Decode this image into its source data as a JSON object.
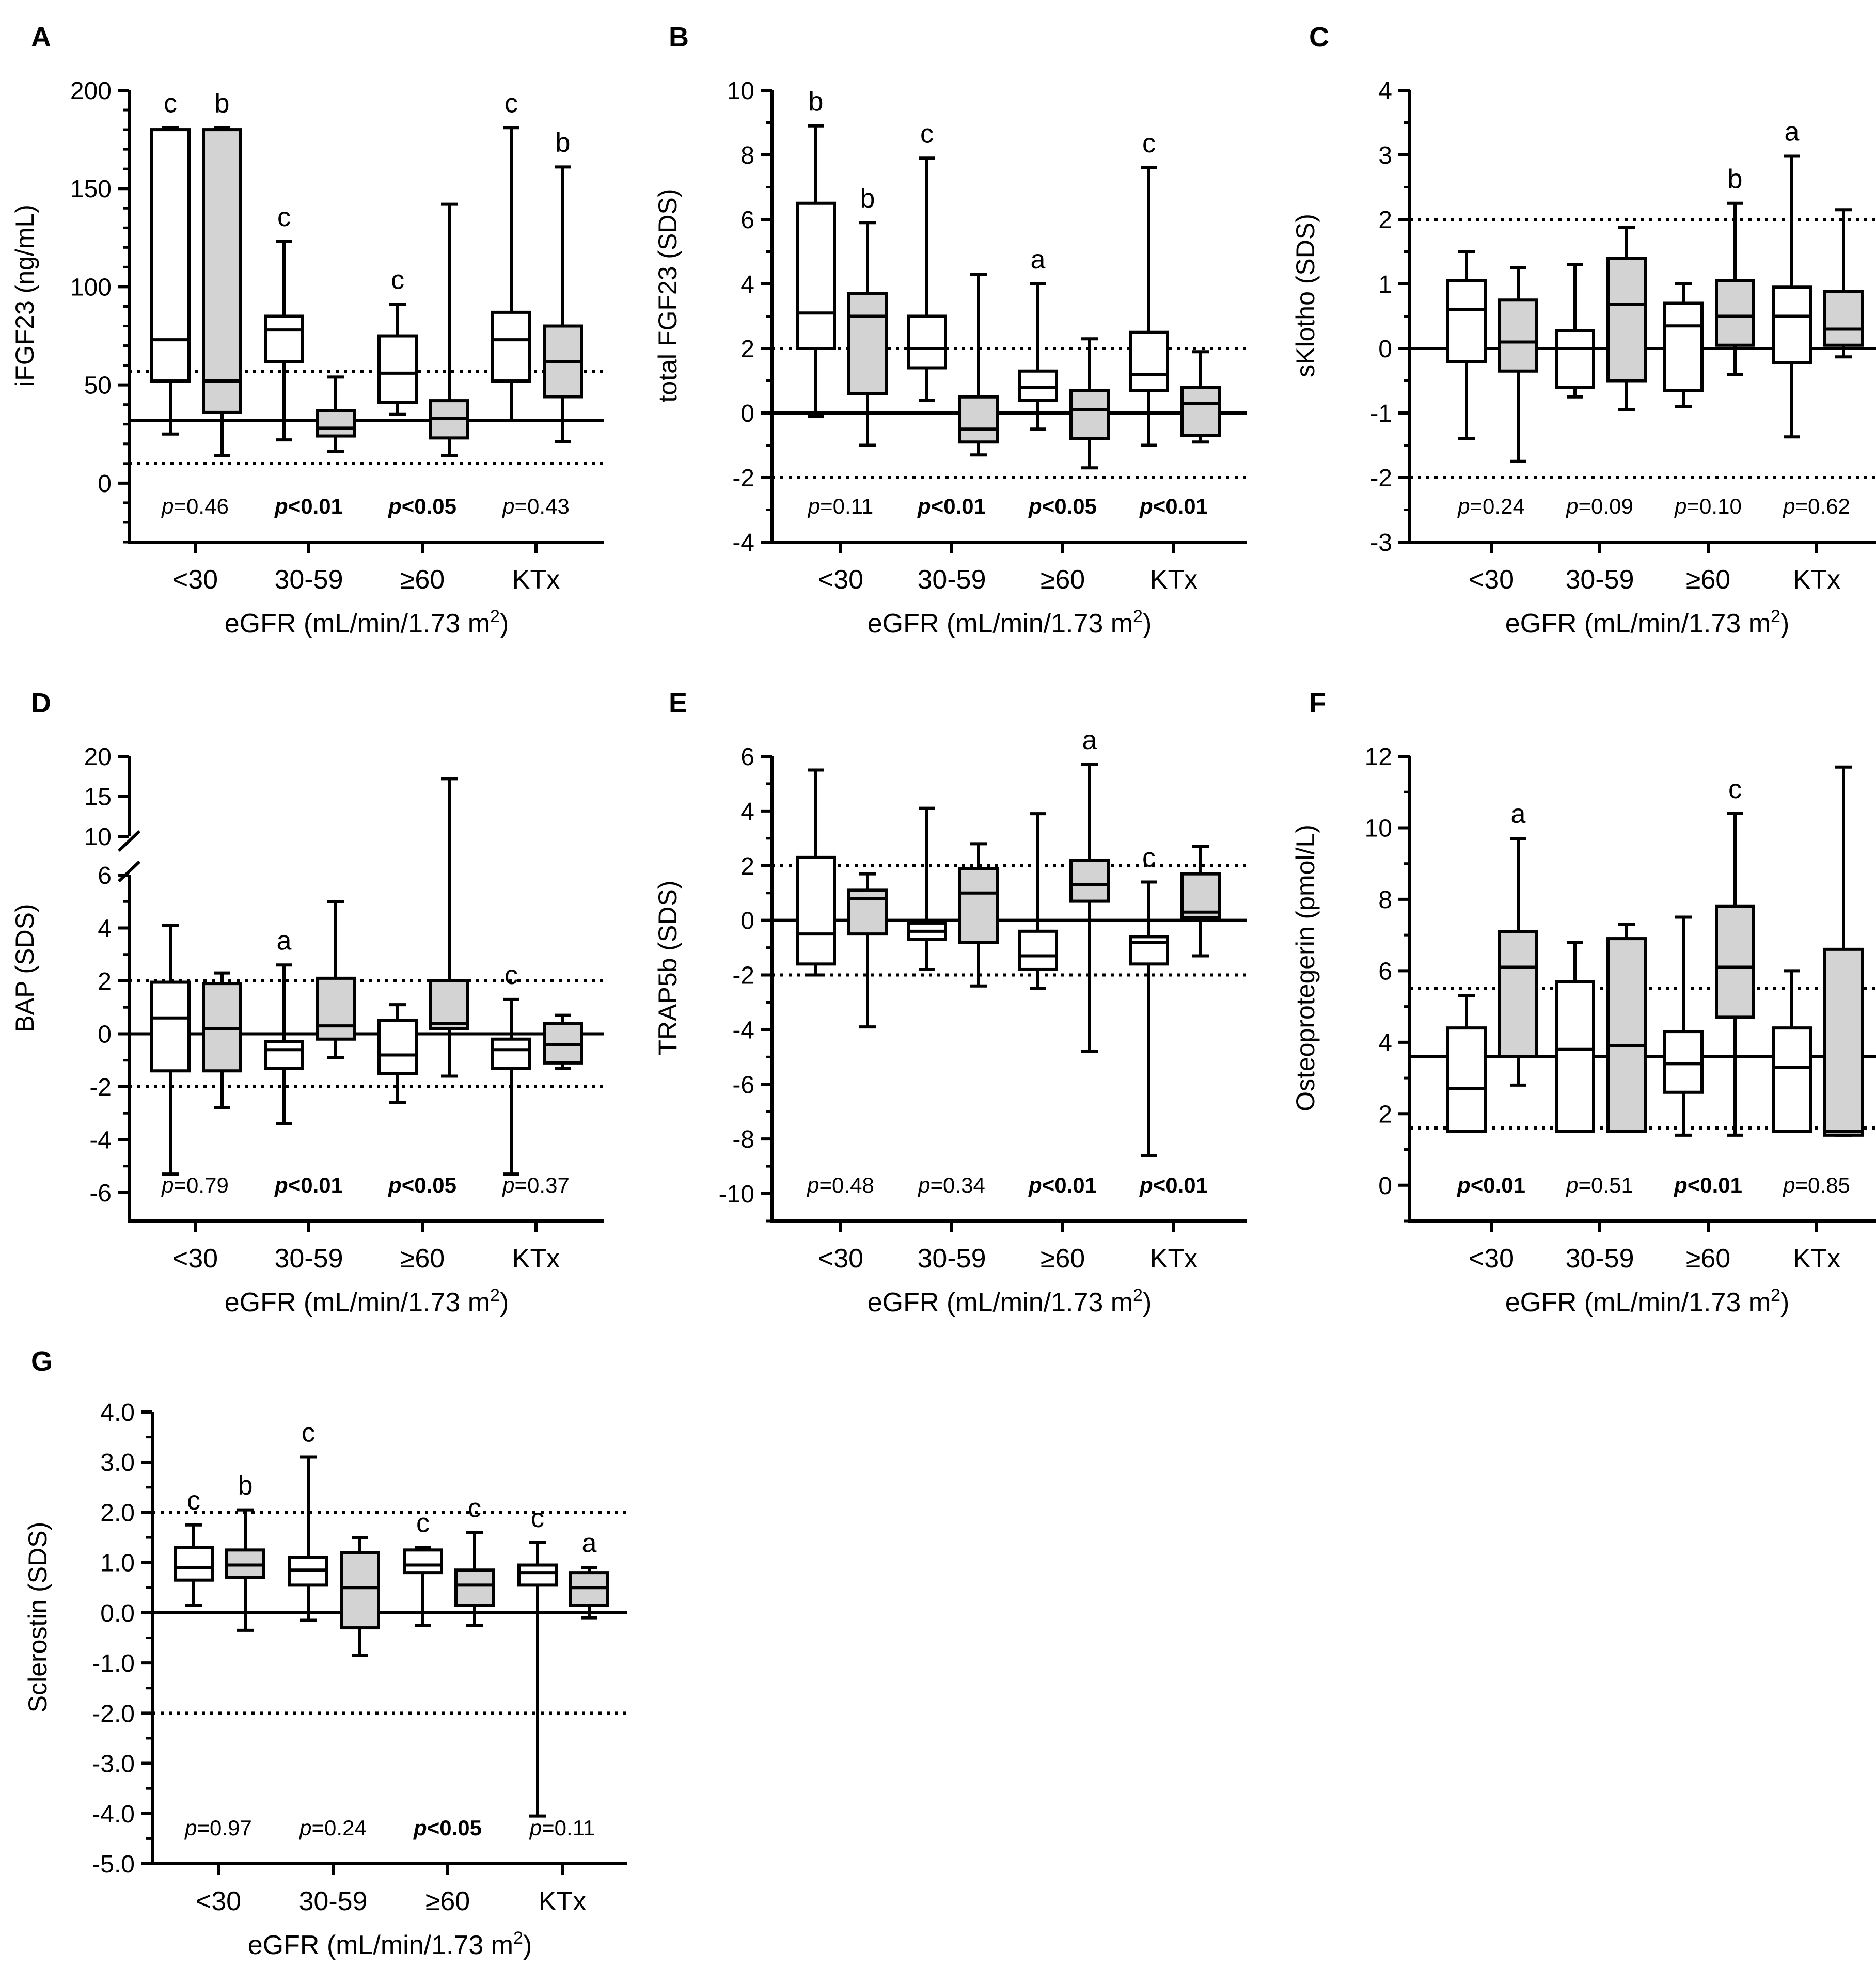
{
  "figure": {
    "x_axis_label": "eGFR (mL/min/1.73 m",
    "x_axis_superscript": "2",
    "x_axis_label_close": ")"
  },
  "chart_data": [
    {
      "id": "A",
      "panel_letter": "A",
      "type": "box",
      "ylabel": "iFGF23 (ng/mL)",
      "ylim": [
        -30,
        200
      ],
      "yticks": [
        0,
        50,
        100,
        150,
        200
      ],
      "minor_step": 10,
      "categories": [
        "<30",
        "30-59",
        "≥60",
        "KTx"
      ],
      "reference_lines": [
        {
          "value": 32,
          "style": "solid"
        },
        {
          "value": 57,
          "style": "dotted"
        },
        {
          "value": 10,
          "style": "dotted"
        }
      ],
      "boxes": [
        {
          "category": "<30",
          "group": "white",
          "min": 25,
          "q1": 52,
          "median": 73,
          "q3": 180,
          "max": 181,
          "label": "c"
        },
        {
          "category": "<30",
          "group": "gray",
          "min": 14,
          "q1": 36,
          "median": 52,
          "q3": 180,
          "max": 181,
          "label": "b"
        },
        {
          "category": "30-59",
          "group": "white",
          "min": 22,
          "q1": 62,
          "median": 78,
          "q3": 85,
          "max": 123,
          "label": "c"
        },
        {
          "category": "30-59",
          "group": "gray",
          "min": 16,
          "q1": 24,
          "median": 28,
          "q3": 37,
          "max": 54,
          "label": ""
        },
        {
          "category": "≥60",
          "group": "white",
          "min": 35,
          "q1": 41,
          "median": 56,
          "q3": 75,
          "max": 91,
          "label": "c"
        },
        {
          "category": "≥60",
          "group": "gray",
          "min": 14,
          "q1": 23,
          "median": 33,
          "q3": 42,
          "max": 142,
          "label": ""
        },
        {
          "category": "KTx",
          "group": "white",
          "min": 32,
          "q1": 52,
          "median": 73,
          "q3": 87,
          "max": 181,
          "label": "c"
        },
        {
          "category": "KTx",
          "group": "gray",
          "min": 21,
          "q1": 44,
          "median": 62,
          "q3": 80,
          "max": 161,
          "label": "b"
        }
      ],
      "pvalues": [
        {
          "label": "p",
          "value": "=0.46",
          "bold": false
        },
        {
          "label": "p",
          "value": "<0.01",
          "bold": true
        },
        {
          "label": "p",
          "value": "<0.05",
          "bold": true
        },
        {
          "label": "p",
          "value": "=0.43",
          "bold": false
        }
      ]
    },
    {
      "id": "B",
      "panel_letter": "B",
      "type": "box",
      "ylabel": "total FGF23 (SDS)",
      "ylim": [
        -4,
        10
      ],
      "yticks": [
        -4,
        -2,
        0,
        2,
        4,
        6,
        8,
        10
      ],
      "minor_step": 1,
      "categories": [
        "<30",
        "30-59",
        "≥60",
        "KTx"
      ],
      "reference_lines": [
        {
          "value": 0,
          "style": "solid"
        },
        {
          "value": 2,
          "style": "dotted"
        },
        {
          "value": -2,
          "style": "dotted"
        }
      ],
      "boxes": [
        {
          "category": "<30",
          "group": "white",
          "min": -0.1,
          "q1": 2.0,
          "median": 3.1,
          "q3": 6.5,
          "max": 8.9,
          "label": "b"
        },
        {
          "category": "<30",
          "group": "gray",
          "min": -1.0,
          "q1": 0.6,
          "median": 3.0,
          "q3": 3.7,
          "max": 5.9,
          "label": "b"
        },
        {
          "category": "30-59",
          "group": "white",
          "min": 0.4,
          "q1": 1.4,
          "median": 2.0,
          "q3": 3.0,
          "max": 7.9,
          "label": "c"
        },
        {
          "category": "30-59",
          "group": "gray",
          "min": -1.3,
          "q1": -0.9,
          "median": -0.5,
          "q3": 0.5,
          "max": 4.3,
          "label": ""
        },
        {
          "category": "≥60",
          "group": "white",
          "min": -0.5,
          "q1": 0.4,
          "median": 0.8,
          "q3": 1.3,
          "max": 4.0,
          "label": "a"
        },
        {
          "category": "≥60",
          "group": "gray",
          "min": -1.7,
          "q1": -0.8,
          "median": 0.1,
          "q3": 0.7,
          "max": 2.3,
          "label": ""
        },
        {
          "category": "KTx",
          "group": "white",
          "min": -1.0,
          "q1": 0.7,
          "median": 1.2,
          "q3": 2.5,
          "max": 7.6,
          "label": "c"
        },
        {
          "category": "KTx",
          "group": "gray",
          "min": -0.9,
          "q1": -0.7,
          "median": 0.3,
          "q3": 0.8,
          "max": 1.9,
          "label": ""
        }
      ],
      "pvalues": [
        {
          "label": "p",
          "value": "=0.11",
          "bold": false
        },
        {
          "label": "p",
          "value": "<0.01",
          "bold": true
        },
        {
          "label": "p",
          "value": "<0.05",
          "bold": true
        },
        {
          "label": "p",
          "value": "<0.01",
          "bold": true
        }
      ]
    },
    {
      "id": "C",
      "panel_letter": "C",
      "type": "box",
      "ylabel": "sKlotho (SDS)",
      "ylim": [
        -3,
        4
      ],
      "yticks": [
        -3,
        -2,
        -1,
        0,
        1,
        2,
        3,
        4
      ],
      "minor_step": 0.5,
      "categories": [
        "<30",
        "30-59",
        "≥60",
        "KTx"
      ],
      "reference_lines": [
        {
          "value": 0,
          "style": "solid"
        },
        {
          "value": 2,
          "style": "dotted"
        },
        {
          "value": -2,
          "style": "dotted"
        }
      ],
      "boxes": [
        {
          "category": "<30",
          "group": "white",
          "min": -1.4,
          "q1": -0.2,
          "median": 0.6,
          "q3": 1.05,
          "max": 1.5,
          "label": ""
        },
        {
          "category": "<30",
          "group": "gray",
          "min": -1.75,
          "q1": -0.35,
          "median": 0.1,
          "q3": 0.75,
          "max": 1.25,
          "label": ""
        },
        {
          "category": "30-59",
          "group": "white",
          "min": -0.75,
          "q1": -0.6,
          "median": 0.0,
          "q3": 0.28,
          "max": 1.3,
          "label": ""
        },
        {
          "category": "30-59",
          "group": "gray",
          "min": -0.95,
          "q1": -0.5,
          "median": 0.68,
          "q3": 1.4,
          "max": 1.88,
          "label": ""
        },
        {
          "category": "≥60",
          "group": "white",
          "min": -0.9,
          "q1": -0.65,
          "median": 0.35,
          "q3": 0.7,
          "max": 1.0,
          "label": ""
        },
        {
          "category": "≥60",
          "group": "gray",
          "min": -0.4,
          "q1": 0.05,
          "median": 0.5,
          "q3": 1.05,
          "max": 2.25,
          "label": "b"
        },
        {
          "category": "KTx",
          "group": "white",
          "min": -1.37,
          "q1": -0.22,
          "median": 0.5,
          "q3": 0.95,
          "max": 2.98,
          "label": "a"
        },
        {
          "category": "KTx",
          "group": "gray",
          "min": -0.13,
          "q1": 0.05,
          "median": 0.3,
          "q3": 0.88,
          "max": 2.15,
          "label": ""
        }
      ],
      "pvalues": [
        {
          "label": "p",
          "value": "=0.24",
          "bold": false
        },
        {
          "label": "p",
          "value": "=0.09",
          "bold": false
        },
        {
          "label": "p",
          "value": "=0.10",
          "bold": false
        },
        {
          "label": "p",
          "value": "=0.62",
          "bold": false
        }
      ]
    },
    {
      "id": "D",
      "panel_letter": "D",
      "type": "box",
      "ylabel": "BAP (SDS)",
      "ylim": [
        -7,
        20
      ],
      "broken_axis": {
        "lower_top": 6,
        "upper_bottom": 10,
        "upper_top": 20
      },
      "yticks_lower": [
        -6,
        -4,
        -2,
        0,
        2,
        4,
        6
      ],
      "yticks_upper": [
        10,
        15,
        20
      ],
      "minor_step": 1,
      "categories": [
        "<30",
        "30-59",
        "≥60",
        "KTx"
      ],
      "reference_lines": [
        {
          "value": 0,
          "style": "solid"
        },
        {
          "value": 2,
          "style": "dotted"
        },
        {
          "value": -2,
          "style": "dotted"
        }
      ],
      "boxes": [
        {
          "category": "<30",
          "group": "white",
          "min": -5.3,
          "q1": -1.4,
          "median": 0.6,
          "q3": 1.95,
          "max": 4.1,
          "label": ""
        },
        {
          "category": "<30",
          "group": "gray",
          "min": -2.8,
          "q1": -1.4,
          "median": 0.2,
          "q3": 1.9,
          "max": 2.3,
          "label": ""
        },
        {
          "category": "30-59",
          "group": "white",
          "min": -3.4,
          "q1": -1.3,
          "median": -0.6,
          "q3": -0.3,
          "max": 2.6,
          "label": "a"
        },
        {
          "category": "30-59",
          "group": "gray",
          "min": -0.9,
          "q1": -0.2,
          "median": 0.3,
          "q3": 2.1,
          "max": 5.0,
          "label": ""
        },
        {
          "category": "≥60",
          "group": "white",
          "min": -2.6,
          "q1": -1.5,
          "median": -0.8,
          "q3": 0.5,
          "max": 1.1,
          "label": ""
        },
        {
          "category": "≥60",
          "group": "gray",
          "min": -1.6,
          "q1": 0.2,
          "median": 0.4,
          "q3": 2.0,
          "max": 17.2,
          "label": ""
        },
        {
          "category": "KTx",
          "group": "white",
          "min": -5.3,
          "q1": -1.3,
          "median": -0.6,
          "q3": -0.2,
          "max": 1.3,
          "label": "c"
        },
        {
          "category": "KTx",
          "group": "gray",
          "min": -1.3,
          "q1": -1.1,
          "median": -0.4,
          "q3": 0.4,
          "max": 0.7,
          "label": ""
        }
      ],
      "pvalues": [
        {
          "label": "p",
          "value": "=0.79",
          "bold": false
        },
        {
          "label": "p",
          "value": "<0.01",
          "bold": true
        },
        {
          "label": "p",
          "value": "<0.05",
          "bold": true
        },
        {
          "label": "p",
          "value": "=0.37",
          "bold": false
        }
      ]
    },
    {
      "id": "E",
      "panel_letter": "E",
      "type": "box",
      "ylabel": "TRAP5b (SDS)",
      "ylim": [
        -11,
        6
      ],
      "yticks": [
        -10,
        -8,
        -6,
        -4,
        -2,
        0,
        2,
        4,
        6
      ],
      "minor_step": 1,
      "categories": [
        "<30",
        "30-59",
        "≥60",
        "KTx"
      ],
      "reference_lines": [
        {
          "value": 0,
          "style": "solid"
        },
        {
          "value": 2,
          "style": "dotted"
        },
        {
          "value": -2,
          "style": "dotted"
        }
      ],
      "boxes": [
        {
          "category": "<30",
          "group": "white",
          "min": -2.0,
          "q1": -1.6,
          "median": -0.5,
          "q3": 2.3,
          "max": 5.5,
          "label": ""
        },
        {
          "category": "<30",
          "group": "gray",
          "min": -3.9,
          "q1": -0.5,
          "median": 0.8,
          "q3": 1.1,
          "max": 1.7,
          "label": ""
        },
        {
          "category": "30-59",
          "group": "white",
          "min": -1.8,
          "q1": -0.7,
          "median": -0.4,
          "q3": -0.1,
          "max": 4.1,
          "label": ""
        },
        {
          "category": "30-59",
          "group": "gray",
          "min": -2.4,
          "q1": -0.8,
          "median": 1.0,
          "q3": 1.9,
          "max": 2.8,
          "label": ""
        },
        {
          "category": "≥60",
          "group": "white",
          "min": -2.5,
          "q1": -1.8,
          "median": -1.3,
          "q3": -0.4,
          "max": 3.9,
          "label": ""
        },
        {
          "category": "≥60",
          "group": "gray",
          "min": -4.8,
          "q1": 0.7,
          "median": 1.3,
          "q3": 2.2,
          "max": 5.7,
          "label": "a"
        },
        {
          "category": "KTx",
          "group": "white",
          "min": -8.6,
          "q1": -1.6,
          "median": -0.8,
          "q3": -0.6,
          "max": 1.4,
          "label": "c"
        },
        {
          "category": "KTx",
          "group": "gray",
          "min": -1.3,
          "q1": 0.1,
          "median": 0.3,
          "q3": 1.7,
          "max": 2.7,
          "label": ""
        }
      ],
      "pvalues": [
        {
          "label": "p",
          "value": "=0.48",
          "bold": false
        },
        {
          "label": "p",
          "value": "=0.34",
          "bold": false
        },
        {
          "label": "p",
          "value": "<0.01",
          "bold": true
        },
        {
          "label": "p",
          "value": "<0.01",
          "bold": true
        }
      ]
    },
    {
      "id": "F",
      "panel_letter": "F",
      "type": "box",
      "ylabel": "Osteoprotegerin (pmol/L)",
      "ylim": [
        -1,
        12
      ],
      "yticks": [
        0,
        2,
        4,
        6,
        8,
        10,
        12
      ],
      "minor_step": 1,
      "categories": [
        "<30",
        "30-59",
        "≥60",
        "KTx"
      ],
      "reference_lines": [
        {
          "value": 3.6,
          "style": "solid"
        },
        {
          "value": 5.5,
          "style": "dotted"
        },
        {
          "value": 1.6,
          "style": "dotted"
        }
      ],
      "boxes": [
        {
          "category": "<30",
          "group": "white",
          "min": 1.5,
          "q1": 1.5,
          "median": 2.7,
          "q3": 4.4,
          "max": 5.3,
          "label": ""
        },
        {
          "category": "<30",
          "group": "gray",
          "min": 2.8,
          "q1": 3.6,
          "median": 6.1,
          "q3": 7.1,
          "max": 9.7,
          "label": "a"
        },
        {
          "category": "30-59",
          "group": "white",
          "min": 1.5,
          "q1": 1.5,
          "median": 3.8,
          "q3": 5.7,
          "max": 6.8,
          "label": ""
        },
        {
          "category": "30-59",
          "group": "gray",
          "min": 1.5,
          "q1": 1.5,
          "median": 3.9,
          "q3": 6.9,
          "max": 7.3,
          "label": ""
        },
        {
          "category": "≥60",
          "group": "white",
          "min": 1.4,
          "q1": 2.6,
          "median": 3.4,
          "q3": 4.3,
          "max": 7.5,
          "label": ""
        },
        {
          "category": "≥60",
          "group": "gray",
          "min": 1.4,
          "q1": 4.7,
          "median": 6.1,
          "q3": 7.8,
          "max": 10.4,
          "label": "c"
        },
        {
          "category": "KTx",
          "group": "white",
          "min": 1.5,
          "q1": 1.5,
          "median": 3.3,
          "q3": 4.4,
          "max": 6.0,
          "label": ""
        },
        {
          "category": "KTx",
          "group": "gray",
          "min": 1.4,
          "q1": 1.4,
          "median": 1.5,
          "q3": 6.6,
          "max": 11.7,
          "label": ""
        }
      ],
      "pvalues": [
        {
          "label": "p",
          "value": "<0.01",
          "bold": true
        },
        {
          "label": "p",
          "value": "=0.51",
          "bold": false
        },
        {
          "label": "p",
          "value": "<0.01",
          "bold": true
        },
        {
          "label": "p",
          "value": "=0.85",
          "bold": false
        }
      ]
    },
    {
      "id": "G",
      "panel_letter": "G",
      "type": "box",
      "ylabel": "Sclerostin (SDS)",
      "ylim": [
        -5,
        4
      ],
      "yticks": [
        -5,
        -4,
        -3,
        -2,
        -1,
        0,
        1,
        2,
        3,
        4
      ],
      "ytick_format": "fixed1",
      "minor_step": 0.5,
      "categories": [
        "<30",
        "30-59",
        "≥60",
        "KTx"
      ],
      "reference_lines": [
        {
          "value": 0,
          "style": "solid"
        },
        {
          "value": 2,
          "style": "dotted"
        },
        {
          "value": -2,
          "style": "dotted"
        }
      ],
      "boxes": [
        {
          "category": "<30",
          "group": "white",
          "min": 0.15,
          "q1": 0.65,
          "median": 0.9,
          "q3": 1.3,
          "max": 1.75,
          "label": "c"
        },
        {
          "category": "<30",
          "group": "gray",
          "min": -0.35,
          "q1": 0.7,
          "median": 0.95,
          "q3": 1.25,
          "max": 2.05,
          "label": "b"
        },
        {
          "category": "30-59",
          "group": "white",
          "min": -0.15,
          "q1": 0.55,
          "median": 0.85,
          "q3": 1.1,
          "max": 3.1,
          "label": "c"
        },
        {
          "category": "30-59",
          "group": "gray",
          "min": -0.85,
          "q1": -0.3,
          "median": 0.5,
          "q3": 1.2,
          "max": 1.5,
          "label": ""
        },
        {
          "category": "≥60",
          "group": "white",
          "min": -0.25,
          "q1": 0.8,
          "median": 0.95,
          "q3": 1.25,
          "max": 1.3,
          "label": "c"
        },
        {
          "category": "≥60",
          "group": "gray",
          "min": -0.25,
          "q1": 0.15,
          "median": 0.55,
          "q3": 0.85,
          "max": 1.6,
          "label": "c"
        },
        {
          "category": "KTx",
          "group": "white",
          "min": -4.05,
          "q1": 0.55,
          "median": 0.8,
          "q3": 0.95,
          "max": 1.4,
          "label": "c"
        },
        {
          "category": "KTx",
          "group": "gray",
          "min": -0.1,
          "q1": 0.15,
          "median": 0.5,
          "q3": 0.8,
          "max": 0.9,
          "label": "a"
        }
      ],
      "pvalues": [
        {
          "label": "p",
          "value": "=0.97",
          "bold": false
        },
        {
          "label": "p",
          "value": "=0.24",
          "bold": false
        },
        {
          "label": "p",
          "value": "<0.05",
          "bold": true
        },
        {
          "label": "p",
          "value": "=0.11",
          "bold": false
        }
      ]
    }
  ],
  "colors": {
    "white_box": "#ffffff",
    "gray_box": "#d3d3d3",
    "stroke": "#000000"
  }
}
